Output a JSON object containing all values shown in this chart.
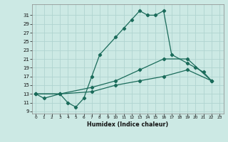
{
  "xlabel": "Humidex (Indice chaleur)",
  "bg_color": "#cce9e4",
  "grid_color": "#b0d4d0",
  "line_color": "#1a6b5a",
  "xlim": [
    -0.5,
    23.5
  ],
  "ylim": [
    8.5,
    33.5
  ],
  "yticks": [
    9,
    11,
    13,
    15,
    17,
    19,
    21,
    23,
    25,
    27,
    29,
    31
  ],
  "xticks": [
    0,
    1,
    2,
    3,
    4,
    5,
    6,
    7,
    8,
    9,
    10,
    11,
    12,
    13,
    14,
    15,
    16,
    17,
    18,
    19,
    20,
    21,
    22,
    23
  ],
  "series1_x": [
    0,
    1,
    3,
    4,
    5,
    6,
    7,
    8,
    10,
    11,
    12,
    13,
    14,
    15,
    16,
    17,
    19,
    20,
    21,
    22
  ],
  "series1_y": [
    13,
    12,
    13,
    11,
    10,
    12,
    17,
    22,
    26,
    28,
    30,
    32,
    31,
    31,
    32,
    22,
    20,
    19,
    18,
    16
  ],
  "series2_x": [
    0,
    3,
    7,
    10,
    13,
    16,
    19,
    22
  ],
  "series2_y": [
    13,
    13,
    14.5,
    16,
    18.5,
    21,
    21,
    16
  ],
  "series3_x": [
    0,
    3,
    7,
    10,
    13,
    16,
    19,
    22
  ],
  "series3_y": [
    13,
    13,
    13.5,
    15,
    16,
    17,
    18.5,
    16
  ]
}
